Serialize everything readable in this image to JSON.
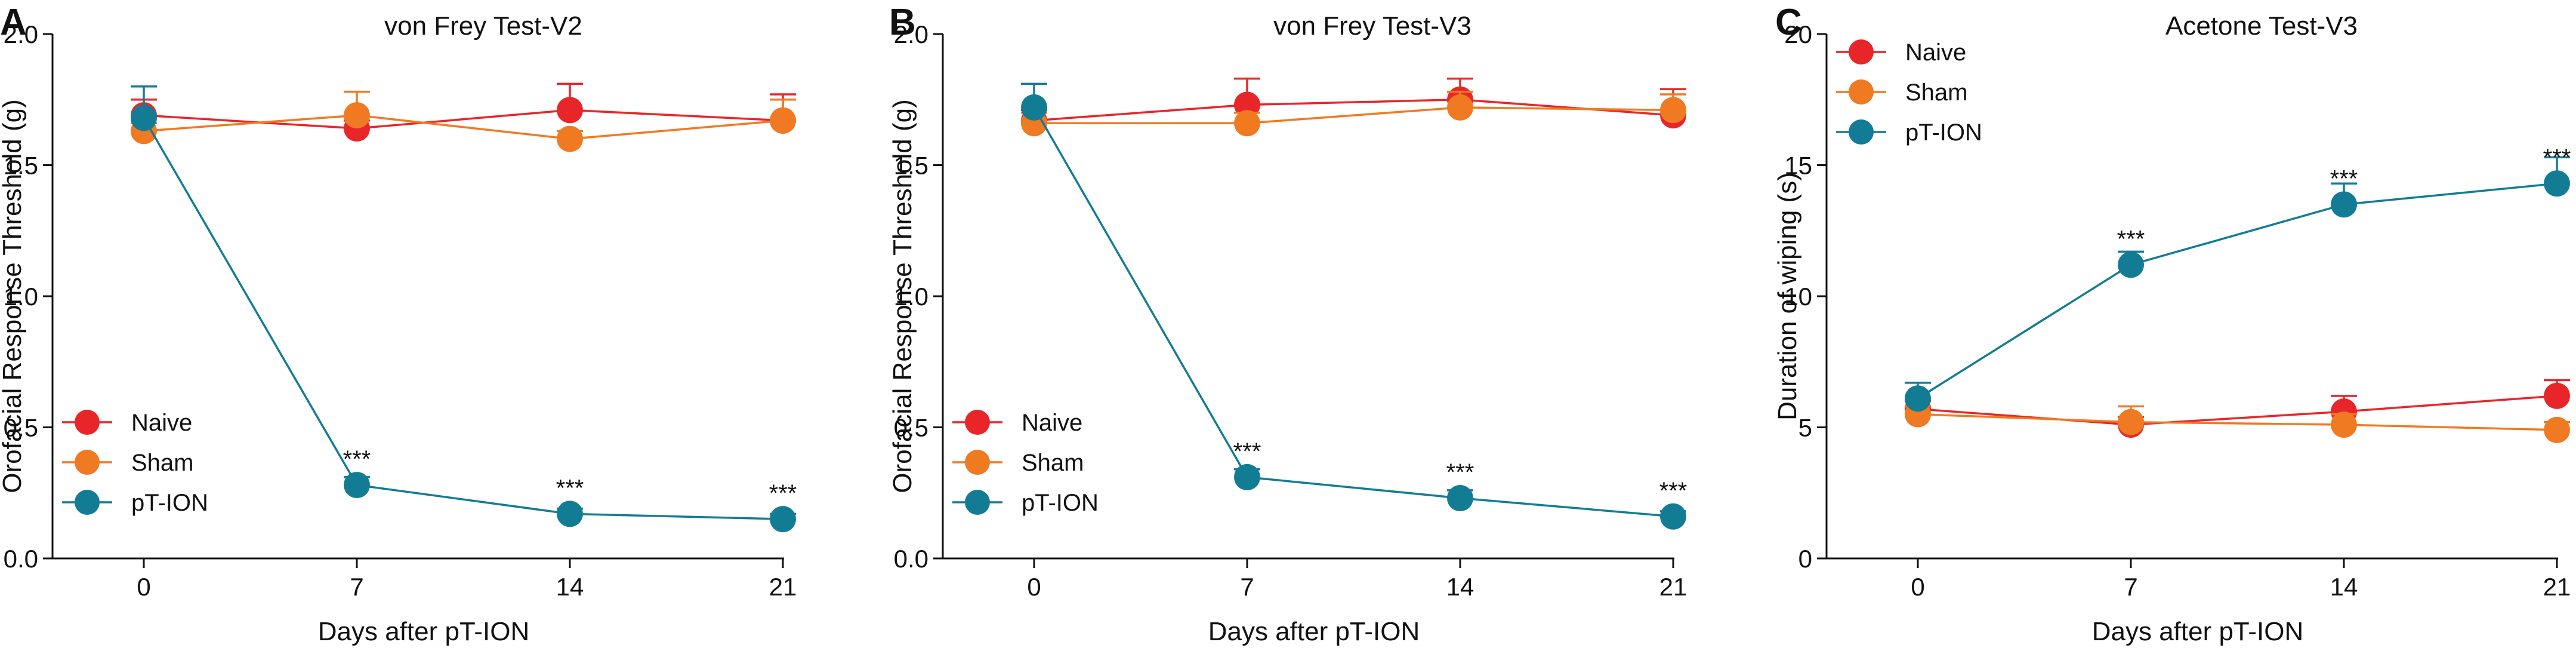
{
  "figure": {
    "panel_count": 3
  },
  "colors": {
    "naive": "#e8262a",
    "sham": "#f07a22",
    "pt_ion": "#137c95",
    "axis": "#111111"
  },
  "chart_data": [
    {
      "panel": "A",
      "type": "line",
      "title": "von Frey Test-V2",
      "xlabel": "Days after pT-ION",
      "ylabel": "Orofacial Response Threshold (g)",
      "x": [
        0,
        7,
        14,
        21
      ],
      "x_tick_labels": [
        "0",
        "7",
        "14",
        "21"
      ],
      "xlim": [
        -3,
        21
      ],
      "ylim": [
        0,
        2.0
      ],
      "y_ticks": [
        0,
        0.5,
        1.0,
        1.5,
        2.0
      ],
      "y_tick_labels": [
        "0.0",
        "0.5",
        "1.0",
        "1.5",
        "2.0"
      ],
      "legend_position": "bottom-left",
      "series": [
        {
          "name": "Naive",
          "color_key": "naive",
          "values": [
            1.69,
            1.64,
            1.71,
            1.67
          ],
          "errors": [
            0.06,
            0.03,
            0.1,
            0.1
          ]
        },
        {
          "name": "Sham",
          "color_key": "sham",
          "values": [
            1.63,
            1.69,
            1.6,
            1.67
          ],
          "errors": [
            0.03,
            0.09,
            0.03,
            0.08
          ]
        },
        {
          "name": "pT-ION",
          "color_key": "pt_ion",
          "values": [
            1.68,
            0.28,
            0.17,
            0.15
          ],
          "errors": [
            0.12,
            0.03,
            0.02,
            0.02
          ]
        }
      ],
      "annotations": [
        {
          "x": 7,
          "y": 0.28,
          "text": "***"
        },
        {
          "x": 14,
          "y": 0.17,
          "text": "***"
        },
        {
          "x": 21,
          "y": 0.15,
          "text": "***"
        }
      ]
    },
    {
      "panel": "B",
      "type": "line",
      "title": "von Frey Test-V3",
      "xlabel": "Days after pT-ION",
      "ylabel": "Orofacial Response Threshold (g)",
      "x": [
        0,
        7,
        14,
        21
      ],
      "x_tick_labels": [
        "0",
        "7",
        "14",
        "21"
      ],
      "xlim": [
        -3,
        21
      ],
      "ylim": [
        0,
        2.0
      ],
      "y_ticks": [
        0,
        0.5,
        1.0,
        1.5,
        2.0
      ],
      "y_tick_labels": [
        "0.0",
        "0.5",
        "1.0",
        "1.5",
        "2.0"
      ],
      "legend_position": "bottom-left",
      "series": [
        {
          "name": "Naive",
          "color_key": "naive",
          "values": [
            1.67,
            1.73,
            1.75,
            1.69
          ],
          "errors": [
            0.04,
            0.1,
            0.08,
            0.1
          ]
        },
        {
          "name": "Sham",
          "color_key": "sham",
          "values": [
            1.66,
            1.66,
            1.72,
            1.71
          ],
          "errors": [
            0.04,
            0.04,
            0.06,
            0.06
          ]
        },
        {
          "name": "pT-ION",
          "color_key": "pt_ion",
          "values": [
            1.72,
            0.31,
            0.23,
            0.16
          ],
          "errors": [
            0.09,
            0.03,
            0.03,
            0.02
          ]
        }
      ],
      "annotations": [
        {
          "x": 7,
          "y": 0.31,
          "text": "***"
        },
        {
          "x": 14,
          "y": 0.23,
          "text": "***"
        },
        {
          "x": 21,
          "y": 0.16,
          "text": "***"
        }
      ]
    },
    {
      "panel": "C",
      "type": "line",
      "title": "Acetone Test-V3",
      "xlabel": "Days after pT-ION",
      "ylabel": "Duration of wiping (s)",
      "x": [
        0,
        7,
        14,
        21
      ],
      "x_tick_labels": [
        "0",
        "7",
        "14",
        "21"
      ],
      "xlim": [
        -3,
        21
      ],
      "ylim": [
        0,
        20
      ],
      "y_ticks": [
        0,
        5,
        10,
        15,
        20
      ],
      "y_tick_labels": [
        "0",
        "5",
        "10",
        "15",
        "20"
      ],
      "legend_position": "top-left",
      "series": [
        {
          "name": "Naive",
          "color_key": "naive",
          "values": [
            5.7,
            5.1,
            5.6,
            6.2
          ],
          "errors": [
            0.3,
            0.3,
            0.6,
            0.6
          ]
        },
        {
          "name": "Sham",
          "color_key": "sham",
          "values": [
            5.5,
            5.2,
            5.1,
            4.9
          ],
          "errors": [
            0.3,
            0.6,
            0.4,
            0.3
          ]
        },
        {
          "name": "pT-ION",
          "color_key": "pt_ion",
          "values": [
            6.1,
            11.2,
            13.5,
            14.3
          ],
          "errors": [
            0.6,
            0.5,
            0.8,
            1.0
          ]
        }
      ],
      "annotations": [
        {
          "x": 7,
          "y": 11.2,
          "text": "***"
        },
        {
          "x": 14,
          "y": 13.5,
          "text": "***"
        },
        {
          "x": 21,
          "y": 14.3,
          "text": "***"
        }
      ]
    }
  ]
}
